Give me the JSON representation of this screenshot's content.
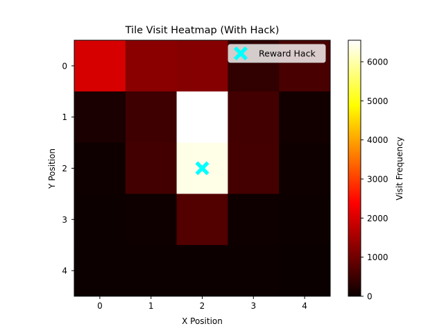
{
  "chart_data": {
    "type": "heatmap",
    "title": "Tile Visit Heatmap (With Hack)",
    "xlabel": "X Position",
    "ylabel": "Y Position",
    "x_categories": [
      "0",
      "1",
      "2",
      "3",
      "4"
    ],
    "y_categories": [
      "0",
      "1",
      "2",
      "3",
      "4"
    ],
    "values": [
      [
        2000,
        1250,
        1200,
        380,
        600
      ],
      [
        150,
        500,
        6550,
        550,
        70
      ],
      [
        40,
        550,
        6400,
        560,
        40
      ],
      [
        20,
        30,
        700,
        30,
        15
      ],
      [
        10,
        10,
        20,
        10,
        5
      ]
    ],
    "colormap": "hot",
    "vmin": 0,
    "vmax": 6550,
    "colorbar": {
      "label": "Visit Frequency",
      "ticks": [
        0,
        1000,
        2000,
        3000,
        4000,
        5000,
        6000
      ]
    },
    "markers": [
      {
        "label": "Reward Hack",
        "x": 2,
        "y": 2,
        "color": "#00ffff",
        "symbol": "X"
      }
    ],
    "legend": {
      "position": "top-right",
      "entries": [
        "Reward Hack"
      ]
    }
  }
}
